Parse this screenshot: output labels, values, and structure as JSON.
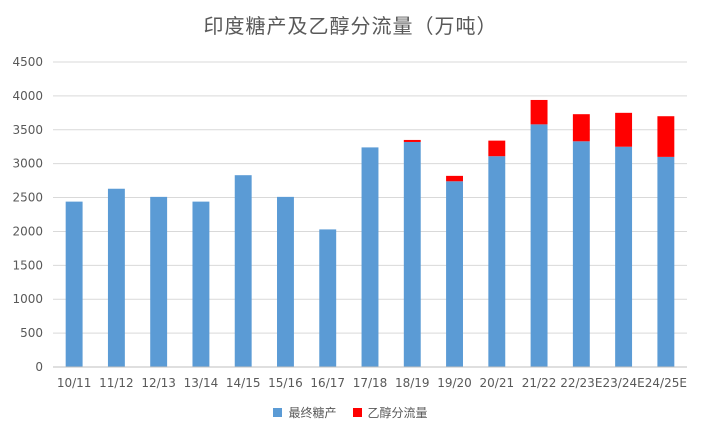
{
  "chart_data": {
    "type": "bar",
    "stacked": true,
    "title": "印度糖产及乙醇分流量（万吨）",
    "categories": [
      "10/11",
      "11/12",
      "12/13",
      "13/14",
      "14/15",
      "15/16",
      "16/17",
      "17/18",
      "18/19",
      "19/20",
      "20/21",
      "21/22",
      "22/23E",
      "23/24E",
      "24/25E"
    ],
    "series": [
      {
        "name": "最终糖产",
        "color": "#5B9BD5",
        "values": [
          2440,
          2630,
          2510,
          2440,
          2830,
          2510,
          2030,
          3240,
          3320,
          2740,
          3110,
          3580,
          3330,
          3250,
          3100
        ]
      },
      {
        "name": "乙醇分流量",
        "color": "#FF0000",
        "values": [
          0,
          0,
          0,
          0,
          0,
          0,
          0,
          0,
          30,
          80,
          230,
          360,
          400,
          500,
          600
        ]
      }
    ],
    "ylim": [
      0,
      4500
    ],
    "yticks": [
      0,
      500,
      1000,
      1500,
      2000,
      2500,
      3000,
      3500,
      4000,
      4500
    ],
    "xlabel": "",
    "ylabel": "",
    "grid": true,
    "legend_position": "bottom"
  }
}
